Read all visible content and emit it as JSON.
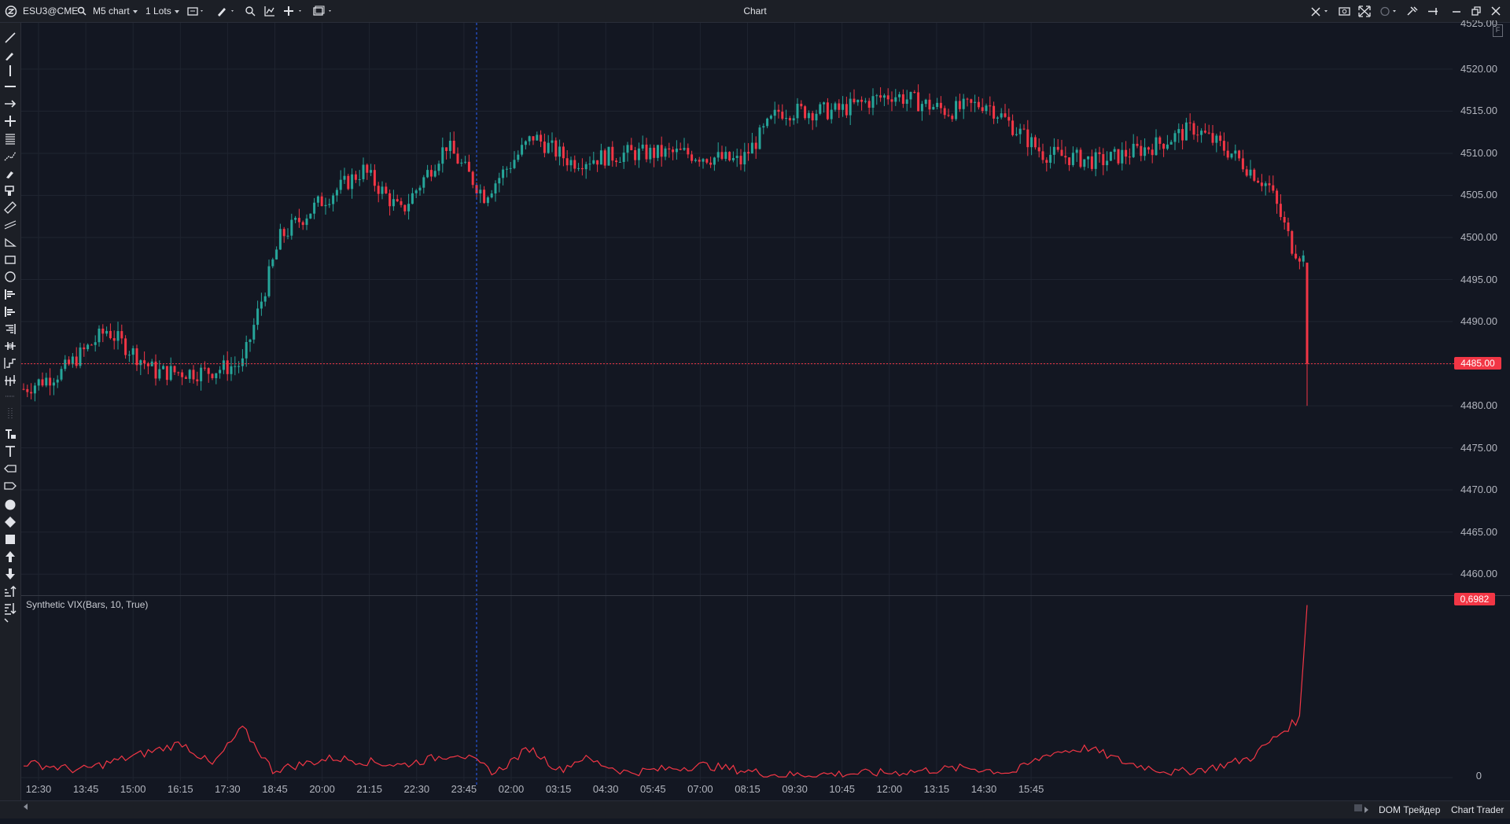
{
  "header": {
    "symbol": "ESU3@CME",
    "chart_type": "M5 chart",
    "lots": "1 Lots",
    "window_title": "Chart"
  },
  "bottom": {
    "dom_label": "DOM Трейдер",
    "chart_trader_label": "Chart Trader"
  },
  "indicator": {
    "label": "Synthetic VIX(Bars, 10, True)",
    "current_value": "0,6982",
    "zero_label": "0"
  },
  "price": {
    "current_price": "4485.00",
    "top_partial_label": "4525.00"
  },
  "chart_data": {
    "type": "candlestick",
    "title": "ESU3@CME M5",
    "y_axis_labels": [
      "4520.00",
      "4515.00",
      "4510.00",
      "4505.00",
      "4500.00",
      "4495.00",
      "4490.00",
      "4485.00",
      "4480.00",
      "4475.00",
      "4470.00",
      "4465.00",
      "4460.00"
    ],
    "ylim": [
      4457.5,
      4525.5
    ],
    "x_axis_labels": [
      "12:30",
      "13:45",
      "15:00",
      "16:15",
      "17:30",
      "18:45",
      "20:00",
      "21:15",
      "22:30",
      "23:45",
      "02:00",
      "03:15",
      "04:30",
      "05:45",
      "07:00",
      "08:15",
      "09:30",
      "10:45",
      "12:00",
      "13:15",
      "14:30",
      "15:45"
    ],
    "price_anchors": [
      {
        "bar": 0,
        "close": 4482
      },
      {
        "bar": 10,
        "close": 4484
      },
      {
        "bar": 22,
        "close": 4489
      },
      {
        "bar": 35,
        "close": 4484
      },
      {
        "bar": 48,
        "close": 4484
      },
      {
        "bar": 58,
        "close": 4485
      },
      {
        "bar": 68,
        "close": 4500
      },
      {
        "bar": 78,
        "close": 4504
      },
      {
        "bar": 90,
        "close": 4508
      },
      {
        "bar": 100,
        "close": 4503
      },
      {
        "bar": 112,
        "close": 4511
      },
      {
        "bar": 122,
        "close": 4505
      },
      {
        "bar": 135,
        "close": 4512
      },
      {
        "bar": 145,
        "close": 4509
      },
      {
        "bar": 160,
        "close": 4510
      },
      {
        "bar": 175,
        "close": 4510
      },
      {
        "bar": 190,
        "close": 4509
      },
      {
        "bar": 200,
        "close": 4515
      },
      {
        "bar": 215,
        "close": 4515
      },
      {
        "bar": 230,
        "close": 4517
      },
      {
        "bar": 245,
        "close": 4515
      },
      {
        "bar": 255,
        "close": 4516
      },
      {
        "bar": 270,
        "close": 4510
      },
      {
        "bar": 285,
        "close": 4509
      },
      {
        "bar": 300,
        "close": 4511
      },
      {
        "bar": 310,
        "close": 4513
      },
      {
        "bar": 320,
        "close": 4510
      },
      {
        "bar": 330,
        "close": 4506
      },
      {
        "bar": 336,
        "close": 4499
      },
      {
        "bar": 340,
        "close": 4497
      }
    ],
    "last_bar": {
      "open": 4497,
      "high": 4497,
      "low": 4480,
      "close": 4485
    },
    "indicator_series": {
      "name": "Synthetic VIX(Bars, 10, True)",
      "ylim": [
        0,
        0.7
      ],
      "anchors": [
        {
          "bar": 0,
          "value": 0.06
        },
        {
          "bar": 15,
          "value": 0.03
        },
        {
          "bar": 30,
          "value": 0.09
        },
        {
          "bar": 42,
          "value": 0.14
        },
        {
          "bar": 50,
          "value": 0.05
        },
        {
          "bar": 58,
          "value": 0.2
        },
        {
          "bar": 66,
          "value": 0.03
        },
        {
          "bar": 82,
          "value": 0.08
        },
        {
          "bar": 100,
          "value": 0.05
        },
        {
          "bar": 115,
          "value": 0.1
        },
        {
          "bar": 125,
          "value": 0.02
        },
        {
          "bar": 134,
          "value": 0.12
        },
        {
          "bar": 142,
          "value": 0.03
        },
        {
          "bar": 148,
          "value": 0.08
        },
        {
          "bar": 160,
          "value": 0.02
        },
        {
          "bar": 180,
          "value": 0.05
        },
        {
          "bar": 200,
          "value": 0.01
        },
        {
          "bar": 230,
          "value": 0.02
        },
        {
          "bar": 250,
          "value": 0.04
        },
        {
          "bar": 262,
          "value": 0.02
        },
        {
          "bar": 272,
          "value": 0.1
        },
        {
          "bar": 282,
          "value": 0.12
        },
        {
          "bar": 292,
          "value": 0.06
        },
        {
          "bar": 305,
          "value": 0.02
        },
        {
          "bar": 315,
          "value": 0.04
        },
        {
          "bar": 325,
          "value": 0.08
        },
        {
          "bar": 333,
          "value": 0.18
        },
        {
          "bar": 338,
          "value": 0.24
        },
        {
          "bar": 340,
          "value": 0.6982
        }
      ]
    },
    "colors": {
      "up": "#26a69a",
      "down": "#f23645",
      "indicator": "#f23645",
      "crosshair_v": "#2962ff",
      "crosshair_h": "#f23645"
    }
  }
}
